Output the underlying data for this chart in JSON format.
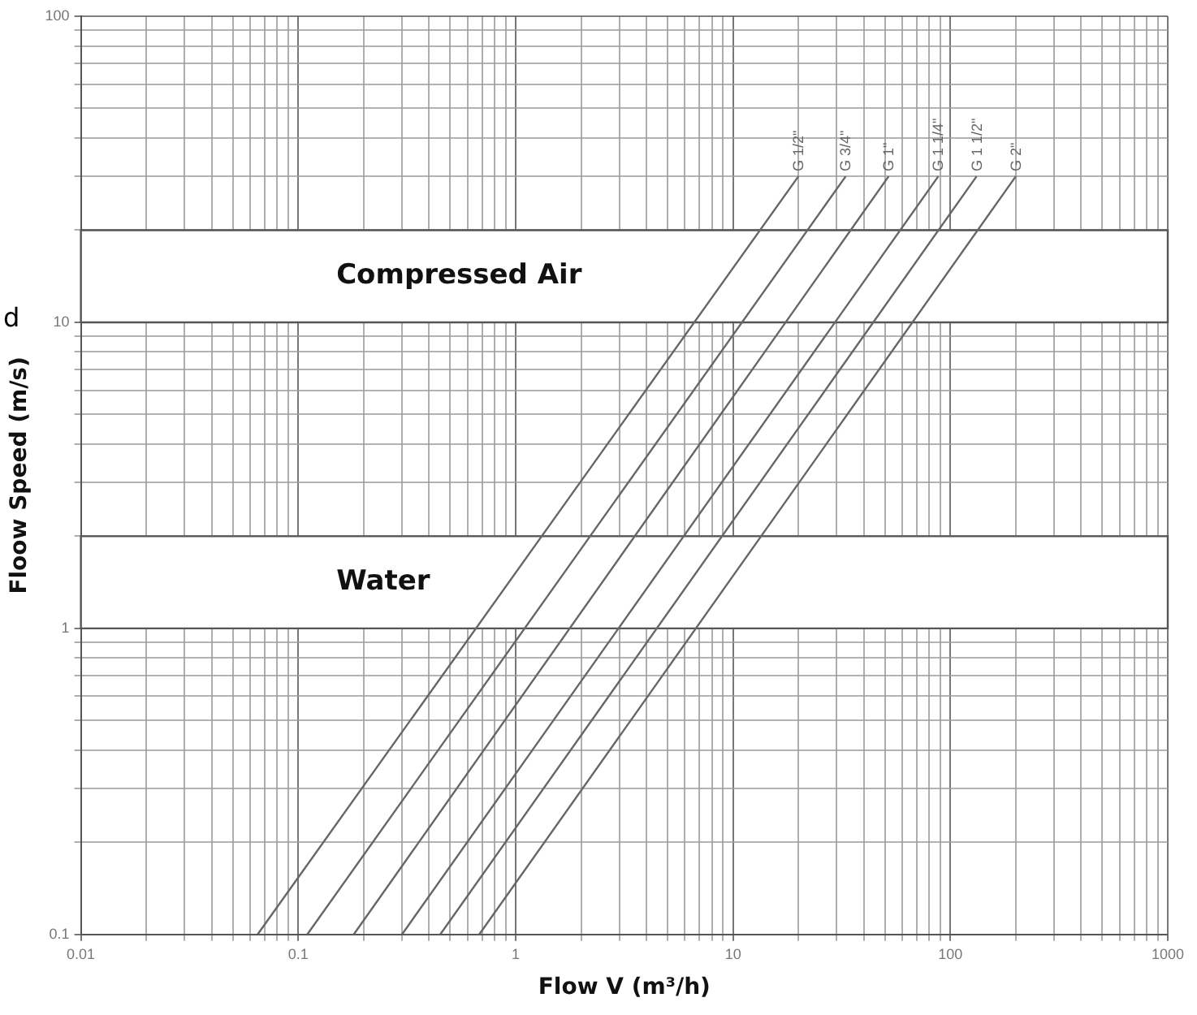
{
  "chart_data": {
    "type": "line",
    "xlabel": "Flow V (m³/h)",
    "ylabel": "Floow Speed (m/s)",
    "log": "xy",
    "grid": true,
    "legend": false,
    "marker": "none",
    "line_style": "solid",
    "xlim": [
      0.01,
      1000
    ],
    "ylim": [
      0.1,
      100
    ],
    "xticks": [
      0.01,
      {
        "value": 0.02,
        "label": null
      },
      {
        "value": 0.03,
        "label": null
      },
      {
        "value": 0.04,
        "label": null
      },
      {
        "value": 0.05,
        "label": null
      },
      {
        "value": 0.06,
        "label": null
      },
      {
        "value": 0.07,
        "label": null
      },
      {
        "value": 0.08,
        "label": null
      },
      {
        "value": 0.09,
        "label": null
      },
      0.1,
      {
        "value": 0.2,
        "label": null
      },
      {
        "value": 0.3,
        "label": null
      },
      {
        "value": 0.4,
        "label": null
      },
      {
        "value": 0.5,
        "label": null
      },
      {
        "value": 0.6,
        "label": null
      },
      {
        "value": 0.7,
        "label": null
      },
      {
        "value": 0.8,
        "label": null
      },
      {
        "value": 0.9,
        "label": null
      },
      1,
      {
        "value": 2,
        "label": null
      },
      {
        "value": 3,
        "label": null
      },
      {
        "value": 4,
        "label": null
      },
      {
        "value": 5,
        "label": null
      },
      {
        "value": 6,
        "label": null
      },
      {
        "value": 7,
        "label": null
      },
      {
        "value": 8,
        "label": null
      },
      {
        "value": 9,
        "label": null
      },
      10,
      {
        "value": 20,
        "label": null
      },
      {
        "value": 30,
        "label": null
      },
      {
        "value": 40,
        "label": null
      },
      {
        "value": 50,
        "label": null
      },
      {
        "value": 60,
        "label": null
      },
      {
        "value": 70,
        "label": null
      },
      {
        "value": 80,
        "label": null
      },
      {
        "value": 90,
        "label": null
      },
      100,
      {
        "value": 200,
        "label": null
      },
      {
        "value": 300,
        "label": null
      },
      {
        "value": 400,
        "label": null
      },
      {
        "value": 500,
        "label": null
      },
      {
        "value": 600,
        "label": null
      },
      {
        "value": 700,
        "label": null
      },
      {
        "value": 800,
        "label": null
      },
      {
        "value": 900,
        "label": null
      },
      1000
    ],
    "yticks": [
      0.1,
      {
        "value": 0.2,
        "label": null
      },
      {
        "value": 0.3,
        "label": null
      },
      {
        "value": 0.4,
        "label": null
      },
      {
        "value": 0.5,
        "label": null
      },
      {
        "value": 0.6,
        "label": null
      },
      {
        "value": 0.7,
        "label": null
      },
      {
        "value": 0.8,
        "label": null
      },
      {
        "value": 0.9,
        "label": null
      },
      1,
      {
        "value": 2,
        "label": null
      },
      {
        "value": 3,
        "label": null
      },
      {
        "value": 4,
        "label": null
      },
      {
        "value": 5,
        "label": null
      },
      {
        "value": 6,
        "label": null
      },
      {
        "value": 7,
        "label": null
      },
      {
        "value": 8,
        "label": null
      },
      {
        "value": 9,
        "label": null
      },
      10,
      {
        "value": 20,
        "label": null
      },
      {
        "value": 30,
        "label": null
      },
      {
        "value": 40,
        "label": null
      },
      {
        "value": 50,
        "label": null
      },
      {
        "value": 60,
        "label": null
      },
      {
        "value": 70,
        "label": null
      },
      {
        "value": 80,
        "label": null
      },
      {
        "value": 90,
        "label": null
      },
      100
    ],
    "bands": [
      {
        "axis": "y",
        "from": 10,
        "to": 20,
        "label": "Compressed Air"
      },
      {
        "axis": "y",
        "from": 1,
        "to": 2,
        "label": "Water"
      }
    ],
    "series": [
      {
        "name": "G 1/2\"",
        "color": "#666666",
        "x": [
          0.065,
          20
        ],
        "values": [
          0.1,
          30
        ]
      },
      {
        "name": "G 3/4\"",
        "color": "#666666",
        "x": [
          0.11,
          33
        ],
        "values": [
          0.1,
          30
        ]
      },
      {
        "name": "G 1\"",
        "color": "#666666",
        "x": [
          0.18,
          52
        ],
        "values": [
          0.1,
          30
        ]
      },
      {
        "name": "G 1 1/4\"",
        "color": "#666666",
        "x": [
          0.3,
          88
        ],
        "values": [
          0.1,
          30
        ]
      },
      {
        "name": "G 1 1/2\"",
        "color": "#666666",
        "x": [
          0.45,
          132
        ],
        "values": [
          0.1,
          30
        ]
      },
      {
        "name": "G 2\"",
        "color": "#666666",
        "x": [
          0.68,
          200
        ],
        "values": [
          0.1,
          30
        ]
      }
    ],
    "annotations": [
      "d"
    ]
  }
}
